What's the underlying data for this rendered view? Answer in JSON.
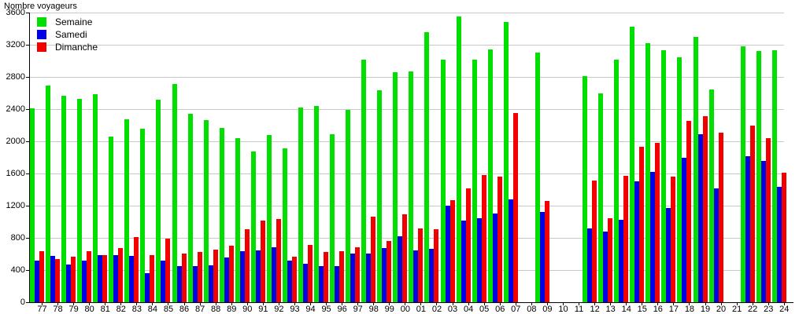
{
  "chart_data": {
    "type": "bar",
    "title": "Nombre voyageurs",
    "categories": [
      "77",
      "78",
      "79",
      "80",
      "81",
      "82",
      "83",
      "84",
      "85",
      "86",
      "87",
      "88",
      "89",
      "90",
      "91",
      "92",
      "93",
      "94",
      "95",
      "96",
      "97",
      "98",
      "99",
      "00",
      "01",
      "02",
      "03",
      "04",
      "05",
      "06",
      "07",
      "08",
      "09",
      "10",
      "11",
      "12",
      "13",
      "14",
      "15",
      "16",
      "17",
      "18",
      "19",
      "20",
      "21",
      "22",
      "23",
      "24"
    ],
    "series": [
      {
        "name": "Semaine",
        "color": "#00DF00",
        "values": [
          2410,
          2690,
          2570,
          2530,
          2590,
          2060,
          2270,
          2160,
          2520,
          2710,
          2340,
          2260,
          2170,
          2040,
          1870,
          2080,
          1910,
          2420,
          2440,
          2090,
          2390,
          3010,
          2630,
          2860,
          2870,
          3360,
          3010,
          3550,
          3010,
          3140,
          3480,
          null,
          3100,
          null,
          null,
          2810,
          2600,
          3010,
          3420,
          3220,
          3130,
          3040,
          3300,
          2640,
          null,
          3180,
          3120,
          3130
        ]
      },
      {
        "name": "Samedi",
        "color": "#0000E6",
        "values": [
          520,
          580,
          470,
          520,
          590,
          590,
          575,
          360,
          520,
          445,
          445,
          455,
          555,
          635,
          640,
          685,
          520,
          480,
          450,
          450,
          605,
          605,
          670,
          815,
          640,
          660,
          1200,
          1010,
          1040,
          1100,
          1280,
          null,
          1120,
          null,
          null,
          920,
          875,
          1020,
          1500,
          1620,
          1170,
          1800,
          2090,
          1415,
          null,
          1810,
          1760,
          1430
        ]
      },
      {
        "name": "Dimanche",
        "color": "#F20000",
        "values": [
          630,
          540,
          570,
          630,
          590,
          670,
          805,
          590,
          795,
          605,
          620,
          650,
          705,
          910,
          1010,
          1030,
          570,
          710,
          625,
          630,
          680,
          1060,
          765,
          1090,
          920,
          910,
          1270,
          1410,
          1580,
          1560,
          2350,
          null,
          1260,
          null,
          null,
          1510,
          1040,
          1570,
          1930,
          1980,
          1565,
          2255,
          2310,
          2105,
          null,
          2200,
          2040,
          1610
        ]
      }
    ],
    "ylim": [
      0,
      3600
    ],
    "ytick_step": 400,
    "y_tick_labels": [
      "0",
      "400",
      "800",
      "1200",
      "1600",
      "2000",
      "2400",
      "2800",
      "3200",
      "3600"
    ],
    "grid": true,
    "legend_position": "top-left",
    "missing_years": [
      "08",
      "10",
      "11",
      "21"
    ]
  },
  "colors": {
    "background": "#FFFFFF",
    "grid": "#C8C8C8",
    "axis": "#000000",
    "text": "#000000"
  }
}
